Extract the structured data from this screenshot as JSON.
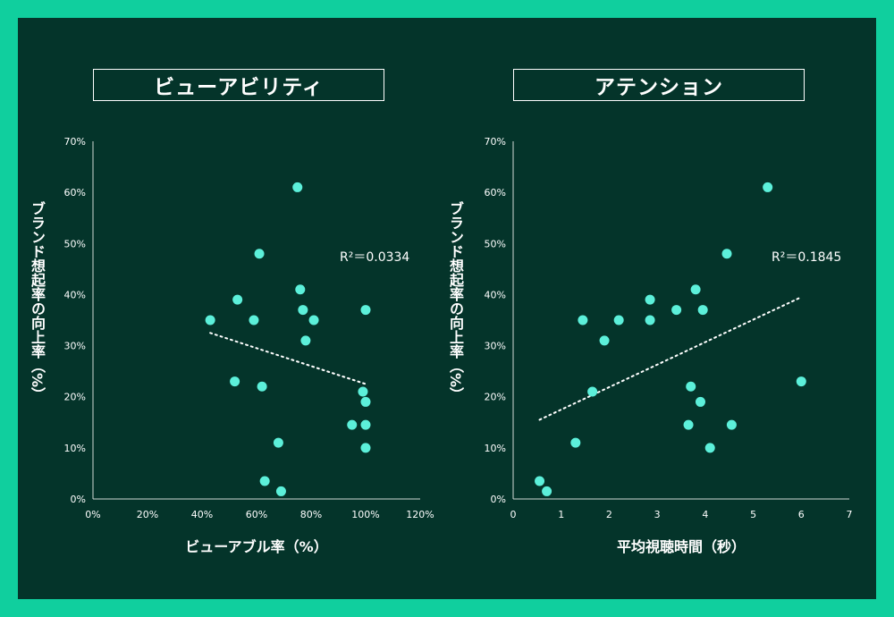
{
  "colors": {
    "background": "#04342a",
    "border": "#10cf9e",
    "point": "#5cf0da",
    "text": "#ffffff"
  },
  "chart_data": [
    {
      "type": "scatter",
      "title": "ビューアビリティ",
      "xlabel": "ビューアブル率（%）",
      "ylabel": "ブランド想起率の向上率（%）",
      "xlim": [
        0,
        1.2
      ],
      "ylim": [
        0,
        0.7
      ],
      "xticks": [
        "0%",
        "20%",
        "40%",
        "60%",
        "80%",
        "100%",
        "120%"
      ],
      "yticks": [
        "0%",
        "10%",
        "20%",
        "30%",
        "40%",
        "50%",
        "60%",
        "70%"
      ],
      "x": [
        0.43,
        0.53,
        0.59,
        0.61,
        0.75,
        0.76,
        0.77,
        0.78,
        0.81,
        1.0,
        0.52,
        0.62,
        0.99,
        1.0,
        0.95,
        1.0,
        1.0,
        0.68,
        0.63,
        0.69
      ],
      "y": [
        0.35,
        0.39,
        0.35,
        0.48,
        0.61,
        0.41,
        0.37,
        0.31,
        0.35,
        0.37,
        0.23,
        0.22,
        0.21,
        0.19,
        0.145,
        0.145,
        0.1,
        0.11,
        0.035,
        0.015
      ],
      "trendline": {
        "x": [
          0.43,
          1.0
        ],
        "y": [
          0.325,
          0.225
        ]
      },
      "r2_label": "R²＝0.0334"
    },
    {
      "type": "scatter",
      "title": "アテンション",
      "xlabel": "平均視聴時間（秒）",
      "ylabel": "ブランド想起率の向上率（%）",
      "xlim": [
        0,
        7
      ],
      "ylim": [
        0,
        0.7
      ],
      "xticks": [
        "0",
        "1",
        "2",
        "3",
        "4",
        "5",
        "6",
        "7"
      ],
      "yticks": [
        "0%",
        "10%",
        "20%",
        "30%",
        "40%",
        "50%",
        "60%",
        "70%"
      ],
      "x": [
        0.55,
        0.7,
        1.45,
        1.3,
        1.65,
        1.9,
        2.2,
        2.85,
        2.85,
        3.4,
        3.8,
        3.95,
        4.45,
        5.3,
        3.7,
        3.9,
        3.65,
        4.55,
        4.1,
        6.0
      ],
      "y": [
        0.035,
        0.015,
        0.35,
        0.11,
        0.21,
        0.31,
        0.35,
        0.39,
        0.35,
        0.37,
        0.41,
        0.37,
        0.48,
        0.61,
        0.22,
        0.19,
        0.145,
        0.145,
        0.1,
        0.23
      ],
      "trendline": {
        "x": [
          0.55,
          6.0
        ],
        "y": [
          0.155,
          0.395
        ]
      },
      "r2_label": "R²＝0.1845"
    }
  ]
}
